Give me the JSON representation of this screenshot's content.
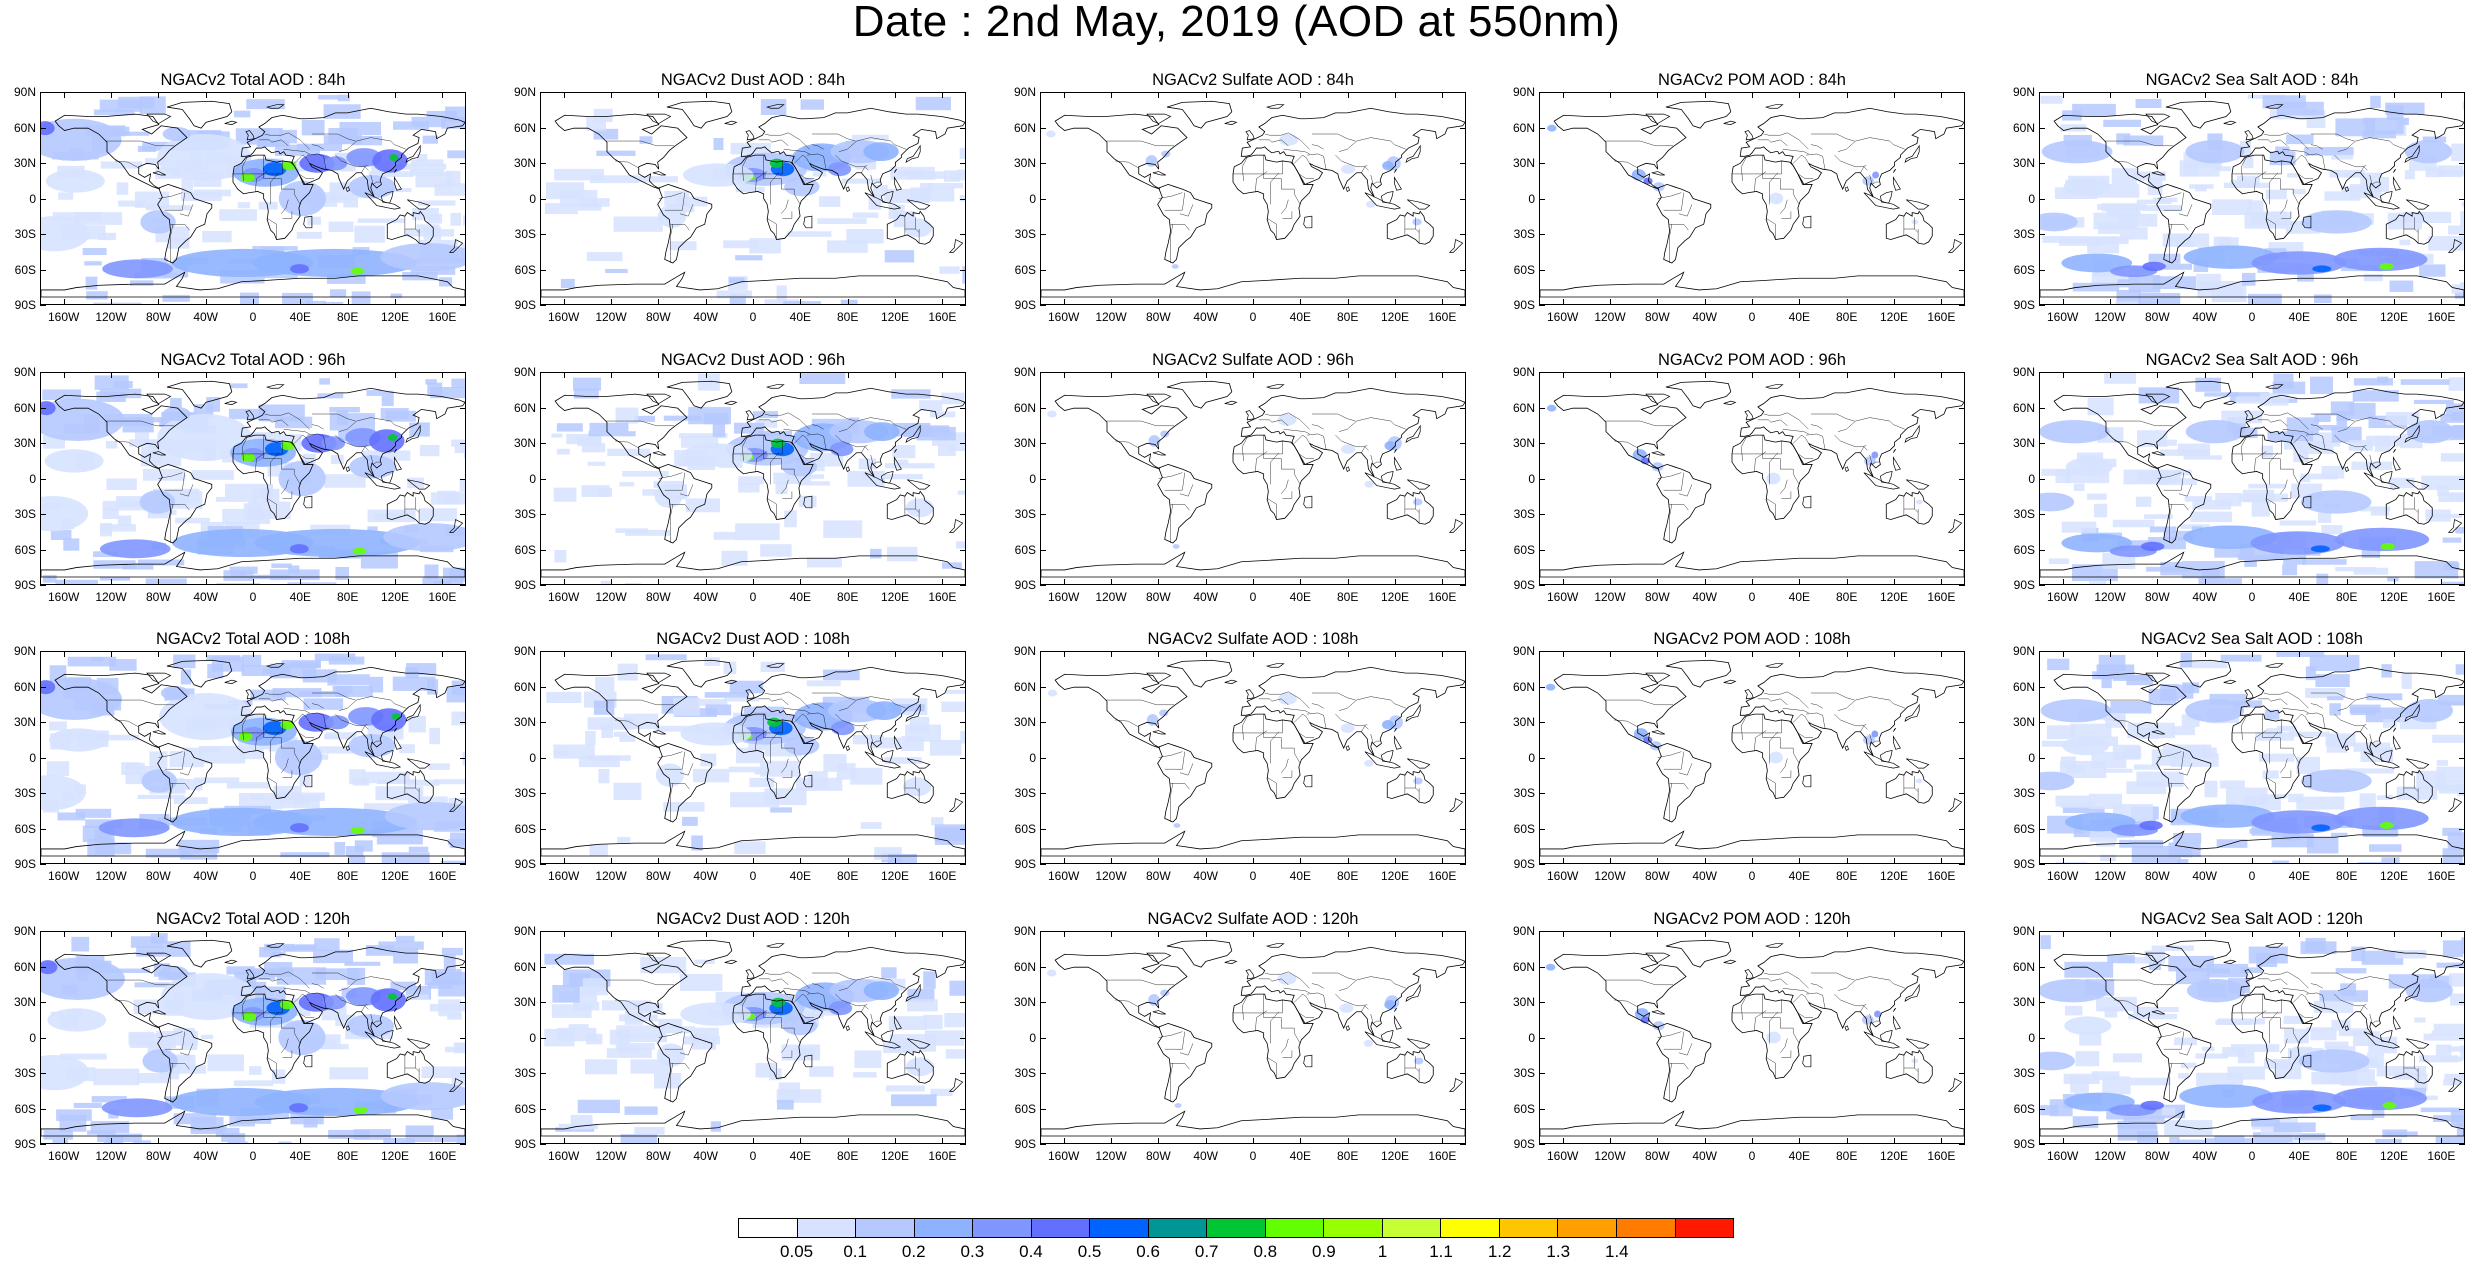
{
  "title": "Date : 2nd May, 2019 (AOD at 550nm)",
  "lat_ticks": [
    "90N",
    "60N",
    "30N",
    "0",
    "30S",
    "60S",
    "90S"
  ],
  "lon_ticks": [
    "160W",
    "120W",
    "80W",
    "40W",
    "0",
    "40E",
    "80E",
    "120E",
    "160E"
  ],
  "lon_tick_values": [
    -160,
    -120,
    -80,
    -40,
    0,
    40,
    80,
    120,
    160
  ],
  "lat_tick_values": [
    90,
    60,
    30,
    0,
    -30,
    -60,
    -90
  ],
  "panels": [
    {
      "title": "NGACv2 Total AOD : 84h",
      "species": "total",
      "hour": 84
    },
    {
      "title": "NGACv2 Dust AOD : 84h",
      "species": "dust",
      "hour": 84
    },
    {
      "title": "NGACv2 Sulfate AOD : 84h",
      "species": "sulfate",
      "hour": 84
    },
    {
      "title": "NGACv2 POM AOD : 84h",
      "species": "pom",
      "hour": 84
    },
    {
      "title": "NGACv2 Sea Salt AOD : 84h",
      "species": "seasalt",
      "hour": 84
    },
    {
      "title": "NGACv2 Total AOD : 96h",
      "species": "total",
      "hour": 96
    },
    {
      "title": "NGACv2 Dust AOD : 96h",
      "species": "dust",
      "hour": 96
    },
    {
      "title": "NGACv2 Sulfate AOD : 96h",
      "species": "sulfate",
      "hour": 96
    },
    {
      "title": "NGACv2 POM AOD : 96h",
      "species": "pom",
      "hour": 96
    },
    {
      "title": "NGACv2 Sea Salt AOD : 96h",
      "species": "seasalt",
      "hour": 96
    },
    {
      "title": "NGACv2 Total AOD : 108h",
      "species": "total",
      "hour": 108
    },
    {
      "title": "NGACv2 Dust AOD : 108h",
      "species": "dust",
      "hour": 108
    },
    {
      "title": "NGACv2 Sulfate AOD : 108h",
      "species": "sulfate",
      "hour": 108
    },
    {
      "title": "NGACv2 POM AOD : 108h",
      "species": "pom",
      "hour": 108
    },
    {
      "title": "NGACv2 Sea Salt AOD : 108h",
      "species": "seasalt",
      "hour": 108
    },
    {
      "title": "NGACv2 Total AOD : 120h",
      "species": "total",
      "hour": 120
    },
    {
      "title": "NGACv2 Dust AOD : 120h",
      "species": "dust",
      "hour": 120
    },
    {
      "title": "NGACv2 Sulfate AOD : 120h",
      "species": "sulfate",
      "hour": 120
    },
    {
      "title": "NGACv2 POM AOD : 120h",
      "species": "pom",
      "hour": 120
    },
    {
      "title": "NGACv2 Sea Salt  AOD : 120h",
      "species": "seasalt",
      "hour": 120
    }
  ],
  "colorbar": {
    "labels": [
      "0.05",
      "0.1",
      "0.2",
      "0.3",
      "0.4",
      "0.5",
      "0.6",
      "0.7",
      "0.8",
      "0.9",
      "1",
      "1.1",
      "1.2",
      "1.3",
      "1.4"
    ],
    "colors": [
      "#ffffff",
      "#d6e2ff",
      "#b5c9ff",
      "#8eb2ff",
      "#7f96ff",
      "#6370ff",
      "#0063ff",
      "#009696",
      "#00c633",
      "#63ff00",
      "#96ff00",
      "#c6ff33",
      "#ffff00",
      "#ffc600",
      "#ffa000",
      "#ff7c00",
      "#ff1900"
    ]
  }
}
